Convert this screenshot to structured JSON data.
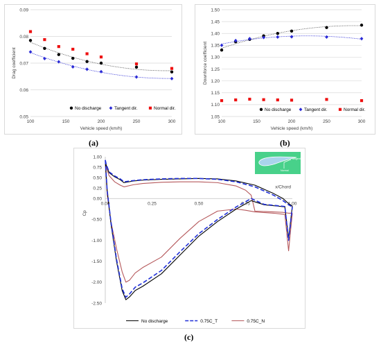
{
  "chart_data": [
    {
      "type": "scatter",
      "panel_label": "(a)",
      "xlabel": "Vehicle speed (km/h)",
      "ylabel": "Drag coefficient",
      "xlim": [
        100,
        300
      ],
      "ylim": [
        0.05,
        0.09
      ],
      "x_ticks": [
        100,
        150,
        200,
        250,
        300
      ],
      "y_ticks": [
        0.05,
        0.06,
        0.07,
        0.08,
        0.09
      ],
      "y_tick_labels": [
        "0.05",
        "0.06",
        "0.07",
        "0.08",
        "0.09"
      ],
      "grid": "horizontal",
      "legend_position": "bottom",
      "series": [
        {
          "name": "No discharge",
          "color": "#000000",
          "marker": "circle",
          "trend": "dotted",
          "x": [
            100,
            120,
            140,
            160,
            180,
            200,
            250,
            300
          ],
          "y": [
            0.0785,
            0.0755,
            0.0732,
            0.0718,
            0.0706,
            0.07,
            0.0685,
            0.0667
          ]
        },
        {
          "name": "Tangent dir.",
          "color": "#2b2bd6",
          "marker": "diamond",
          "trend": "dotted",
          "x": [
            100,
            120,
            140,
            160,
            180,
            200,
            250,
            300
          ],
          "y": [
            0.0742,
            0.0717,
            0.0705,
            0.0686,
            0.0677,
            0.0668,
            0.0648,
            0.0642
          ]
        },
        {
          "name": "Normal dir.",
          "color": "#ee1111",
          "marker": "square",
          "trend": "none",
          "x": [
            100,
            120,
            140,
            160,
            180,
            200,
            250,
            300
          ],
          "y": [
            0.0818,
            0.0788,
            0.0762,
            0.0752,
            0.0735,
            0.0723,
            0.0697,
            0.068
          ]
        }
      ]
    },
    {
      "type": "scatter",
      "panel_label": "(b)",
      "xlabel": "Vehicle speed (km/h)",
      "ylabel": "Downforce coefficient",
      "xlim": [
        100,
        300
      ],
      "ylim": [
        1.05,
        1.5
      ],
      "x_ticks": [
        100,
        150,
        200,
        250,
        300
      ],
      "y_ticks": [
        1.05,
        1.1,
        1.15,
        1.2,
        1.25,
        1.3,
        1.35,
        1.4,
        1.45,
        1.5
      ],
      "y_tick_labels": [
        "1.05",
        "1.10",
        "1.15",
        "1.20",
        "1.25",
        "1.30",
        "1.35",
        "1.40",
        "1.45",
        "1.50"
      ],
      "grid": "horizontal",
      "legend_position": "bottom",
      "series": [
        {
          "name": "No discharge",
          "color": "#000000",
          "marker": "circle",
          "trend": "dotted",
          "x": [
            100,
            120,
            140,
            160,
            180,
            200,
            250,
            300
          ],
          "y": [
            1.33,
            1.365,
            1.375,
            1.39,
            1.4,
            1.41,
            1.425,
            1.435
          ]
        },
        {
          "name": "Tangent dir.",
          "color": "#2b2bd6",
          "marker": "diamond",
          "trend": "dotted",
          "x": [
            100,
            120,
            140,
            160,
            180,
            200,
            250,
            300
          ],
          "y": [
            1.35,
            1.37,
            1.378,
            1.383,
            1.385,
            1.386,
            1.385,
            1.378
          ]
        },
        {
          "name": "Normal dir.",
          "color": "#ee1111",
          "marker": "square",
          "trend": "none",
          "x": [
            100,
            120,
            140,
            160,
            180,
            200,
            250,
            300
          ],
          "y": [
            1.117,
            1.12,
            1.123,
            1.121,
            1.12,
            1.119,
            1.122,
            1.117
          ]
        }
      ]
    },
    {
      "type": "line",
      "panel_label": "(c)",
      "xlabel": "x/Chord",
      "ylabel": "Cp",
      "xlim": [
        0,
        1.0
      ],
      "ylim": [
        -2.5,
        1.0
      ],
      "x_ticks": [
        0,
        0.25,
        0.5,
        0.75,
        1.0
      ],
      "x_tick_labels": [
        "0.00",
        "0.25",
        "0.50",
        "0.75",
        "1.00"
      ],
      "y_ticks": [
        1.0,
        0.75,
        0.5,
        0.25,
        0,
        -0.5,
        -1.0,
        -1.5,
        -2.0,
        -2.5
      ],
      "y_tick_labels": [
        "1.00",
        "0.75",
        "0.50",
        "0.25",
        "0.00",
        "-0.50",
        "-1.00",
        "-1.50",
        "-2.00",
        "-2.50"
      ],
      "grid": "none",
      "legend_position": "bottom",
      "inset": {
        "labels": [
          "Tangent",
          "Normal"
        ]
      },
      "series": [
        {
          "name": "No discharge",
          "color": "#000000",
          "dash": "solid",
          "upper": {
            "x": [
              0.0,
              0.005,
              0.02,
              0.05,
              0.08,
              0.1,
              0.15,
              0.2,
              0.3,
              0.4,
              0.5,
              0.6,
              0.7,
              0.8,
              0.9,
              0.95,
              0.98,
              1.0
            ],
            "y": [
              0.9,
              0.8,
              0.62,
              0.52,
              0.45,
              0.38,
              0.42,
              0.44,
              0.46,
              0.47,
              0.48,
              0.47,
              0.42,
              0.32,
              0.12,
              0.0,
              -0.12,
              -0.18
            ]
          },
          "lower": {
            "x": [
              0.0,
              0.01,
              0.03,
              0.06,
              0.09,
              0.11,
              0.13,
              0.16,
              0.2,
              0.3,
              0.4,
              0.5,
              0.6,
              0.7,
              0.78,
              0.85,
              0.92,
              0.96,
              0.98,
              1.0
            ],
            "y": [
              0.9,
              0.2,
              -0.6,
              -1.5,
              -2.2,
              -2.42,
              -2.35,
              -2.2,
              -2.1,
              -1.8,
              -1.35,
              -0.9,
              -0.55,
              -0.25,
              -0.05,
              -0.15,
              -0.18,
              -0.2,
              -0.95,
              -0.18
            ]
          }
        },
        {
          "name": "0.75C_T",
          "color": "#1f2fd8",
          "dash": "dashed",
          "upper": {
            "x": [
              0.0,
              0.005,
              0.02,
              0.05,
              0.08,
              0.1,
              0.15,
              0.2,
              0.3,
              0.4,
              0.5,
              0.6,
              0.7,
              0.8,
              0.9,
              0.95,
              0.98,
              1.0
            ],
            "y": [
              0.92,
              0.82,
              0.64,
              0.54,
              0.47,
              0.4,
              0.43,
              0.45,
              0.47,
              0.48,
              0.48,
              0.46,
              0.4,
              0.28,
              0.08,
              -0.05,
              -0.15,
              -0.2
            ]
          },
          "lower": {
            "x": [
              0.0,
              0.01,
              0.03,
              0.06,
              0.09,
              0.11,
              0.13,
              0.16,
              0.2,
              0.3,
              0.4,
              0.5,
              0.6,
              0.7,
              0.78,
              0.85,
              0.92,
              0.96,
              0.98,
              1.0
            ],
            "y": [
              0.92,
              0.2,
              -0.55,
              -1.45,
              -2.15,
              -2.36,
              -2.28,
              -2.12,
              -2.02,
              -1.72,
              -1.27,
              -0.84,
              -0.5,
              -0.2,
              0.0,
              -0.14,
              -0.17,
              -0.19,
              -1.0,
              -0.2
            ]
          }
        },
        {
          "name": "0.75C_N",
          "color": "#b5585b",
          "dash": "solid",
          "upper": {
            "x": [
              0.0,
              0.005,
              0.02,
              0.05,
              0.08,
              0.1,
              0.15,
              0.2,
              0.3,
              0.4,
              0.5,
              0.6,
              0.7,
              0.75,
              0.78,
              0.8,
              0.9,
              0.95,
              0.98,
              1.0
            ],
            "y": [
              0.88,
              0.75,
              0.55,
              0.4,
              0.32,
              0.28,
              0.33,
              0.36,
              0.39,
              0.4,
              0.4,
              0.38,
              0.3,
              0.2,
              0.08,
              -0.3,
              -0.32,
              -0.33,
              -0.35,
              -0.35
            ]
          },
          "lower": {
            "x": [
              0.0,
              0.01,
              0.03,
              0.06,
              0.09,
              0.11,
              0.13,
              0.16,
              0.2,
              0.3,
              0.4,
              0.5,
              0.6,
              0.7,
              0.75,
              0.8,
              0.9,
              0.96,
              0.98,
              1.0
            ],
            "y": [
              0.88,
              0.1,
              -0.55,
              -1.2,
              -1.75,
              -2.0,
              -1.95,
              -1.78,
              -1.65,
              -1.4,
              -0.95,
              -0.55,
              -0.3,
              -0.25,
              -0.28,
              -0.32,
              -0.35,
              -0.38,
              -1.25,
              -0.35
            ]
          }
        }
      ]
    }
  ]
}
